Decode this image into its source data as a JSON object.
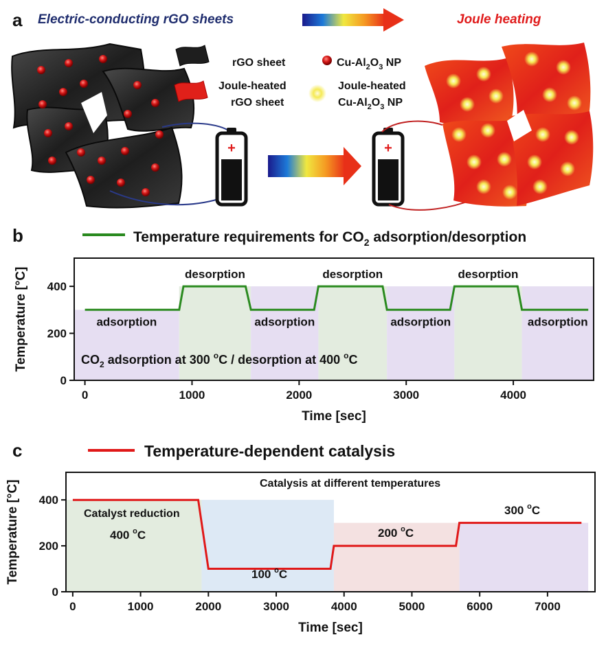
{
  "panel_a": {
    "label": "a",
    "left_title": "Electric-conducting rGO sheets",
    "right_title": "Joule heating",
    "legend": {
      "rgo_sheet": "rGO sheet",
      "joule_rgo_line1": "Joule-heated",
      "joule_rgo_line2": "rGO sheet",
      "np_prefix": "Cu-Al",
      "np_sub1": "2",
      "np_mid": "O",
      "np_sub2": "3",
      "np_suffix": " NP",
      "joule_np_line1": "Joule-heated",
      "joule_np_prefix": "Cu-Al",
      "joule_np_sub1": "2",
      "joule_np_mid": "O",
      "joule_np_sub2": "3",
      "joule_np_suffix": " NP"
    },
    "battery_symbol": "+",
    "colors": {
      "left_title": "#1f2d6e",
      "right_title": "#e01b1b",
      "np_red": "#d01010",
      "np_yellow": "#f5e84a"
    }
  },
  "panel_b": {
    "label": "b",
    "legend_prefix": "Temperature requirements for CO",
    "legend_sub": "2",
    "legend_suffix": " adsorption/desorption",
    "note_prefix": "CO",
    "note_sub": "2",
    "note_mid1": " adsorption at 300 ",
    "note_deg1": "o",
    "note_mid2": "C / desorption at 400 ",
    "note_deg2": "o",
    "note_end": "C",
    "phase_labels": [
      "adsorption",
      "desorption",
      "adsorption",
      "desorption",
      "adsorption",
      "desorption",
      "adsorption"
    ],
    "line_color": "#2a8a1f"
  },
  "panel_c": {
    "label": "c",
    "legend": "Temperature-dependent catalysis",
    "annotation": "Catalysis at different temperatures",
    "reduction_label": "Catalyst reduction",
    "line_color": "#e01818",
    "temp_labels": [
      {
        "value": "400 ",
        "deg": "o",
        "unit": "C"
      },
      {
        "value": "100 ",
        "deg": "o",
        "unit": "C"
      },
      {
        "value": "200 ",
        "deg": "o",
        "unit": "C"
      },
      {
        "value": "300 ",
        "deg": "o",
        "unit": "C"
      }
    ]
  },
  "chart_data": [
    {
      "type": "line",
      "panel": "b",
      "xlabel": "Time [sec]",
      "ylabel": "Temperature [°C]",
      "xlim": [
        -100,
        4750
      ],
      "ylim": [
        0,
        520
      ],
      "xticks": [
        0,
        1000,
        2000,
        3000,
        4000
      ],
      "yticks": [
        0,
        200,
        400
      ],
      "tick_labels_x": [
        "0",
        "1000",
        "2000",
        "3000",
        "4000"
      ],
      "tick_labels_y": [
        "0",
        "200",
        "400"
      ],
      "regions": [
        {
          "phase": "adsorption",
          "start": -100,
          "end": 880,
          "color": "#e6def2"
        },
        {
          "phase": "desorption",
          "start": 880,
          "end": 1550,
          "color": "#e3ecdf"
        },
        {
          "phase": "adsorption",
          "start": 1550,
          "end": 2180,
          "color": "#e6def2"
        },
        {
          "phase": "desorption",
          "start": 2180,
          "end": 2820,
          "color": "#e3ecdf"
        },
        {
          "phase": "adsorption",
          "start": 2820,
          "end": 3450,
          "color": "#e6def2"
        },
        {
          "phase": "desorption",
          "start": 3450,
          "end": 4080,
          "color": "#e3ecdf"
        },
        {
          "phase": "adsorption",
          "start": 4080,
          "end": 4750,
          "color": "#e6def2"
        }
      ],
      "series": [
        {
          "name": "Temperature requirements for CO2 adsorption/desorption",
          "x": [
            0,
            880,
            920,
            1500,
            1550,
            2140,
            2180,
            2780,
            2820,
            3410,
            3450,
            4040,
            4080,
            4700
          ],
          "y": [
            300,
            300,
            400,
            400,
            300,
            300,
            400,
            400,
            300,
            300,
            400,
            400,
            300,
            300
          ]
        }
      ]
    },
    {
      "type": "line",
      "panel": "c",
      "xlabel": "Time [sec]",
      "ylabel": "Temperature [°C]",
      "xlim": [
        -100,
        7700
      ],
      "ylim": [
        0,
        520
      ],
      "xticks": [
        0,
        1000,
        2000,
        3000,
        4000,
        5000,
        6000,
        7000
      ],
      "yticks": [
        0,
        200,
        400
      ],
      "tick_labels_x": [
        "0",
        "1000",
        "2000",
        "3000",
        "4000",
        "5000",
        "6000",
        "7000"
      ],
      "tick_labels_y": [
        "0",
        "200",
        "400"
      ],
      "regions": [
        {
          "phase": "reduction 400 °C",
          "start": -100,
          "end": 1900,
          "color": "#e3ecdf"
        },
        {
          "phase": "100 °C",
          "start": 1900,
          "end": 3850,
          "color": "#dde9f5"
        },
        {
          "phase": "200 °C",
          "start": 3850,
          "end": 5700,
          "color": "#f4e1e1"
        },
        {
          "phase": "300 °C",
          "start": 5700,
          "end": 7600,
          "color": "#e6def2"
        }
      ],
      "series": [
        {
          "name": "Temperature-dependent catalysis",
          "x": [
            0,
            1850,
            2000,
            3800,
            3850,
            5650,
            5700,
            7500
          ],
          "y": [
            400,
            400,
            100,
            100,
            200,
            200,
            300,
            300
          ]
        }
      ]
    }
  ]
}
